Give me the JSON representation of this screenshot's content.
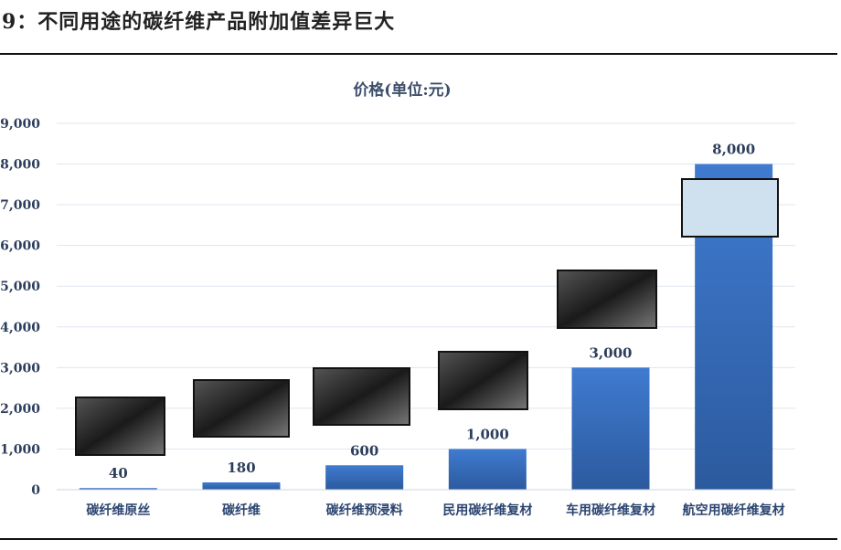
{
  "figure_title": "9：不同用途的碳纤维产品附加值差异巨大",
  "chart_data": {
    "type": "bar",
    "title": "价格(单位:元)",
    "categories": [
      "碳纤维原丝",
      "碳纤维",
      "碳纤维预浸料",
      "民用碳纤维复材",
      "车用碳纤维复材",
      "航空用碳纤维复材"
    ],
    "values": [
      40,
      180,
      600,
      1000,
      3000,
      8000
    ],
    "data_labels": [
      "40",
      "180",
      "600",
      "1,000",
      "3,000",
      "8,000"
    ],
    "ylim": [
      0,
      9000
    ],
    "yticks": [
      0,
      1000,
      2000,
      3000,
      4000,
      5000,
      6000,
      7000,
      8000,
      9000
    ],
    "ytick_labels": [
      "0",
      "1,000",
      "2,000",
      "3,000",
      "4,000",
      "5,000",
      "6,000",
      "7,000",
      "8,000",
      "9,000"
    ],
    "grid": true,
    "bar_color": "#3a6fbf",
    "product_images": [
      "carbon-fiber-precursor-photo",
      "carbon-fiber-spools-photo",
      "prepreg-rolls-photo",
      "carbon-tubes-photo",
      "car-chassis-photo",
      "aircraft-wing-photo"
    ]
  }
}
